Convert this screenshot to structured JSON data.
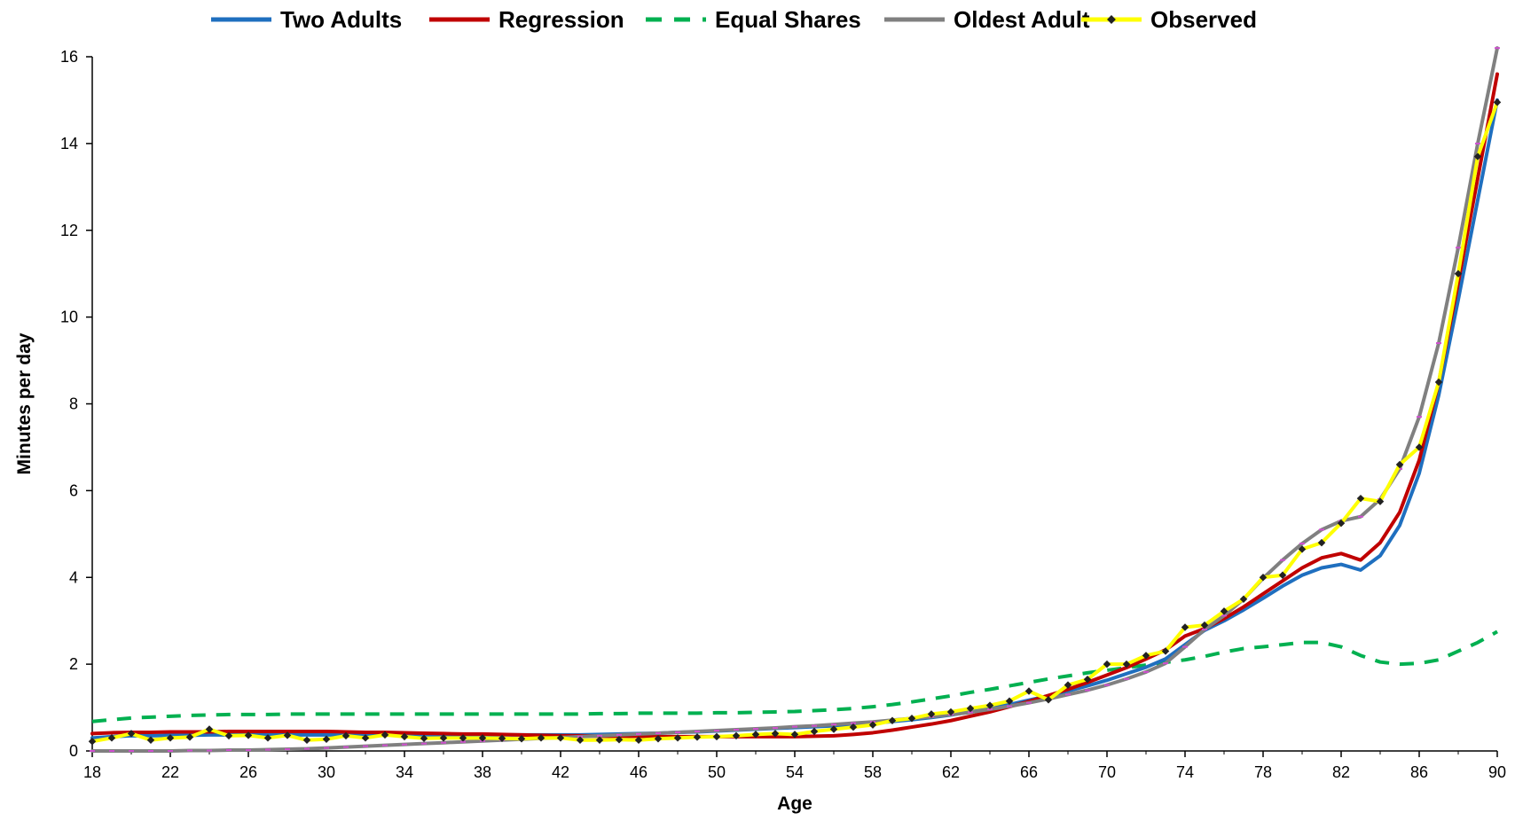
{
  "chart_data": {
    "type": "line",
    "xlabel": "Age",
    "ylabel": "Minutes per day",
    "xlim": [
      18,
      90
    ],
    "ylim": [
      0,
      16
    ],
    "xticks": [
      18,
      22,
      26,
      30,
      34,
      38,
      42,
      46,
      50,
      54,
      58,
      62,
      66,
      70,
      74,
      78,
      82,
      86,
      90
    ],
    "yticks": [
      0,
      2,
      4,
      6,
      8,
      10,
      12,
      14,
      16
    ],
    "grid": false,
    "legend": "top",
    "x": [
      18,
      19,
      20,
      21,
      22,
      23,
      24,
      25,
      26,
      27,
      28,
      29,
      30,
      31,
      32,
      33,
      34,
      35,
      36,
      37,
      38,
      39,
      40,
      41,
      42,
      43,
      44,
      45,
      46,
      47,
      48,
      49,
      50,
      51,
      52,
      53,
      54,
      55,
      56,
      57,
      58,
      59,
      60,
      61,
      62,
      63,
      64,
      65,
      66,
      67,
      68,
      69,
      70,
      71,
      72,
      73,
      74,
      75,
      76,
      77,
      78,
      79,
      80,
      81,
      82,
      83,
      84,
      85,
      86,
      87,
      88,
      89,
      90
    ],
    "series": [
      {
        "name": "Two Adults",
        "color": "#1f6fbf",
        "style": "solid",
        "values": [
          0.3,
          0.33,
          0.35,
          0.35,
          0.36,
          0.36,
          0.37,
          0.37,
          0.37,
          0.37,
          0.37,
          0.37,
          0.37,
          0.37,
          0.37,
          0.37,
          0.37,
          0.37,
          0.37,
          0.37,
          0.37,
          0.37,
          0.37,
          0.37,
          0.37,
          0.37,
          0.38,
          0.39,
          0.4,
          0.41,
          0.43,
          0.44,
          0.46,
          0.48,
          0.5,
          0.52,
          0.54,
          0.56,
          0.58,
          0.61,
          0.64,
          0.68,
          0.72,
          0.77,
          0.83,
          0.9,
          0.98,
          1.07,
          1.17,
          1.27,
          1.38,
          1.5,
          1.63,
          1.78,
          1.93,
          2.12,
          2.45,
          2.78,
          3.0,
          3.25,
          3.52,
          3.8,
          4.05,
          4.22,
          4.3,
          4.17,
          4.5,
          5.2,
          6.4,
          8.2,
          10.4,
          12.7,
          15.0
        ]
      },
      {
        "name": "Regression",
        "color": "#c00000",
        "style": "solid",
        "values": [
          0.4,
          0.42,
          0.43,
          0.43,
          0.44,
          0.44,
          0.44,
          0.45,
          0.45,
          0.45,
          0.45,
          0.45,
          0.45,
          0.44,
          0.43,
          0.43,
          0.42,
          0.41,
          0.4,
          0.39,
          0.39,
          0.38,
          0.37,
          0.36,
          0.35,
          0.35,
          0.34,
          0.34,
          0.34,
          0.33,
          0.33,
          0.33,
          0.33,
          0.33,
          0.33,
          0.33,
          0.33,
          0.34,
          0.35,
          0.38,
          0.42,
          0.48,
          0.55,
          0.62,
          0.7,
          0.8,
          0.9,
          1.02,
          1.14,
          1.28,
          1.42,
          1.58,
          1.75,
          1.92,
          2.12,
          2.33,
          2.65,
          2.82,
          3.05,
          3.32,
          3.62,
          3.92,
          4.22,
          4.45,
          4.55,
          4.4,
          4.8,
          5.5,
          6.7,
          8.5,
          10.8,
          13.2,
          15.6
        ]
      },
      {
        "name": "Equal Shares",
        "color": "#00b050",
        "style": "dashed",
        "values": [
          0.68,
          0.72,
          0.76,
          0.78,
          0.8,
          0.82,
          0.83,
          0.84,
          0.84,
          0.84,
          0.85,
          0.85,
          0.85,
          0.85,
          0.85,
          0.85,
          0.85,
          0.85,
          0.85,
          0.85,
          0.85,
          0.85,
          0.85,
          0.85,
          0.85,
          0.85,
          0.86,
          0.86,
          0.87,
          0.87,
          0.87,
          0.87,
          0.88,
          0.88,
          0.89,
          0.9,
          0.91,
          0.93,
          0.95,
          0.98,
          1.02,
          1.07,
          1.13,
          1.2,
          1.27,
          1.35,
          1.42,
          1.5,
          1.58,
          1.66,
          1.73,
          1.8,
          1.86,
          1.92,
          1.98,
          2.04,
          2.1,
          2.18,
          2.28,
          2.36,
          2.4,
          2.45,
          2.5,
          2.5,
          2.4,
          2.2,
          2.05,
          2.0,
          2.02,
          2.1,
          2.3,
          2.5,
          2.75
        ]
      },
      {
        "name": "Oldest Adult",
        "color": "#808080",
        "style": "solid",
        "values": [
          0.0,
          0.0,
          0.0,
          0.0,
          0.0,
          0.01,
          0.01,
          0.02,
          0.02,
          0.03,
          0.04,
          0.05,
          0.07,
          0.09,
          0.11,
          0.13,
          0.15,
          0.17,
          0.19,
          0.21,
          0.23,
          0.25,
          0.27,
          0.29,
          0.31,
          0.33,
          0.35,
          0.37,
          0.39,
          0.41,
          0.43,
          0.45,
          0.47,
          0.49,
          0.51,
          0.53,
          0.56,
          0.58,
          0.61,
          0.64,
          0.67,
          0.71,
          0.75,
          0.79,
          0.84,
          0.89,
          0.96,
          1.03,
          1.11,
          1.2,
          1.3,
          1.4,
          1.52,
          1.66,
          1.82,
          2.02,
          2.4,
          2.8,
          3.12,
          3.5,
          3.98,
          4.4,
          4.78,
          5.1,
          5.3,
          5.4,
          5.8,
          6.5,
          7.7,
          9.4,
          11.6,
          14.0,
          16.2
        ]
      },
      {
        "name": "Observed",
        "color": "#ffff00",
        "style": "solid-markers",
        "values": [
          0.22,
          0.3,
          0.4,
          0.25,
          0.3,
          0.32,
          0.5,
          0.35,
          0.36,
          0.3,
          0.36,
          0.25,
          0.27,
          0.35,
          0.3,
          0.37,
          0.33,
          0.29,
          0.3,
          0.3,
          0.3,
          0.29,
          0.28,
          0.3,
          0.3,
          0.25,
          0.25,
          0.26,
          0.25,
          0.28,
          0.3,
          0.32,
          0.33,
          0.35,
          0.38,
          0.4,
          0.38,
          0.45,
          0.5,
          0.55,
          0.6,
          0.7,
          0.75,
          0.85,
          0.9,
          0.98,
          1.05,
          1.15,
          1.38,
          1.18,
          1.52,
          1.65,
          2.0,
          2.0,
          2.2,
          2.3,
          2.85,
          2.9,
          3.22,
          3.5,
          4.0,
          4.05,
          4.65,
          4.8,
          5.25,
          5.82,
          5.75,
          6.6,
          7.0,
          8.5,
          11.0,
          13.7,
          14.95
        ]
      }
    ]
  }
}
